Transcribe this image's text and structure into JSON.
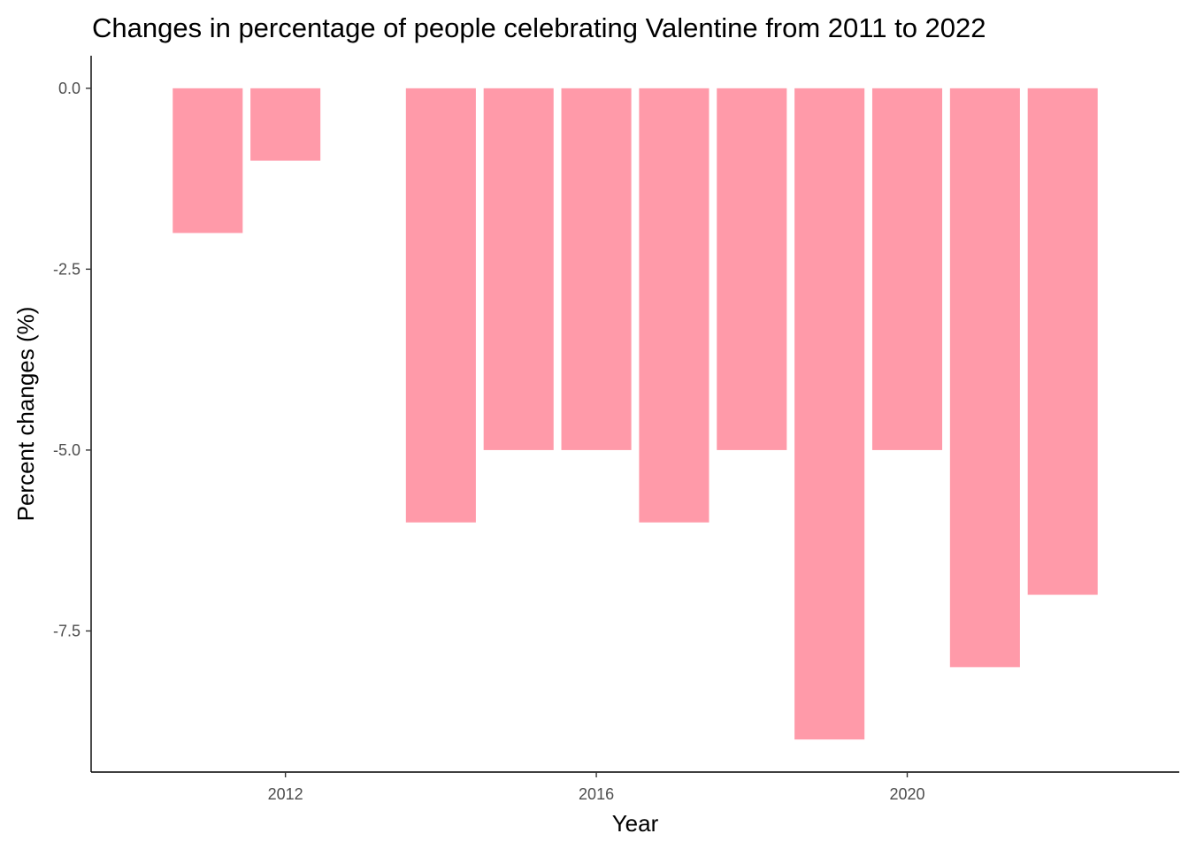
{
  "chart_data": {
    "type": "bar",
    "title": "Changes in percentage of people celebrating Valentine from 2011 to 2022",
    "xlabel": "Year",
    "ylabel": "Percent changes (%)",
    "x": [
      2011,
      2012,
      2013,
      2014,
      2015,
      2016,
      2017,
      2018,
      2019,
      2020,
      2021,
      2022
    ],
    "values": [
      -2,
      -1,
      0,
      -6,
      -5,
      -5,
      -6,
      -5,
      -9,
      -5,
      -8,
      -7
    ],
    "x_ticks": [
      2012,
      2016,
      2020
    ],
    "x_tick_labels": [
      "2012",
      "2016",
      "2020"
    ],
    "y_ticks": [
      0,
      -2.5,
      -5,
      -7.5
    ],
    "y_tick_labels": [
      "0.0",
      "-2.5",
      "-5.0",
      "-7.5"
    ],
    "xlim": [
      2009.5,
      2023.5
    ],
    "ylim": [
      -9.45,
      0.45
    ],
    "bar_color": "#ff9aa9",
    "grid": false,
    "legend": "none"
  }
}
